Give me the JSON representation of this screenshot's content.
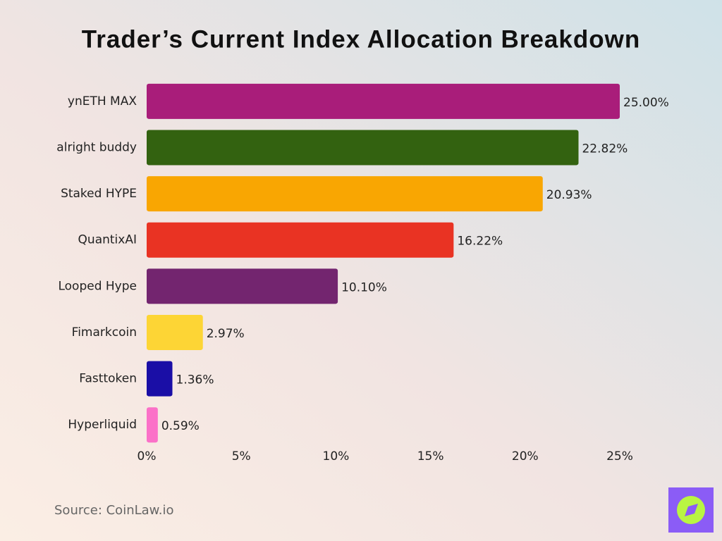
{
  "chart_data": {
    "type": "bar",
    "orientation": "horizontal",
    "title": "Trader’s Current Index Allocation Breakdown",
    "categories": [
      "ynETH MAX",
      "alright buddy",
      "Staked HYPE",
      "QuantixAI",
      "Looped Hype",
      "Fimarkcoin",
      "Fasttoken",
      "Hyperliquid"
    ],
    "values": [
      25.0,
      22.82,
      20.93,
      16.22,
      10.1,
      2.97,
      1.36,
      0.59
    ],
    "value_labels": [
      "25.00%",
      "22.82%",
      "20.93%",
      "16.22%",
      "10.10%",
      "2.97%",
      "1.36%",
      "0.59%"
    ],
    "colors": [
      "#a91d7a",
      "#336210",
      "#f9a602",
      "#e93323",
      "#73256f",
      "#fdd535",
      "#1a0ea6",
      "#fb71c8"
    ],
    "xlim": [
      0,
      25
    ],
    "xticks": [
      {
        "value": 0,
        "label": "0%"
      },
      {
        "value": 5,
        "label": "5%"
      },
      {
        "value": 10,
        "label": "10%"
      },
      {
        "value": 15,
        "label": "15%"
      },
      {
        "value": 20,
        "label": "20%"
      },
      {
        "value": 25,
        "label": "25%"
      }
    ],
    "grid": false,
    "source": "Source: CoinLaw.io"
  }
}
